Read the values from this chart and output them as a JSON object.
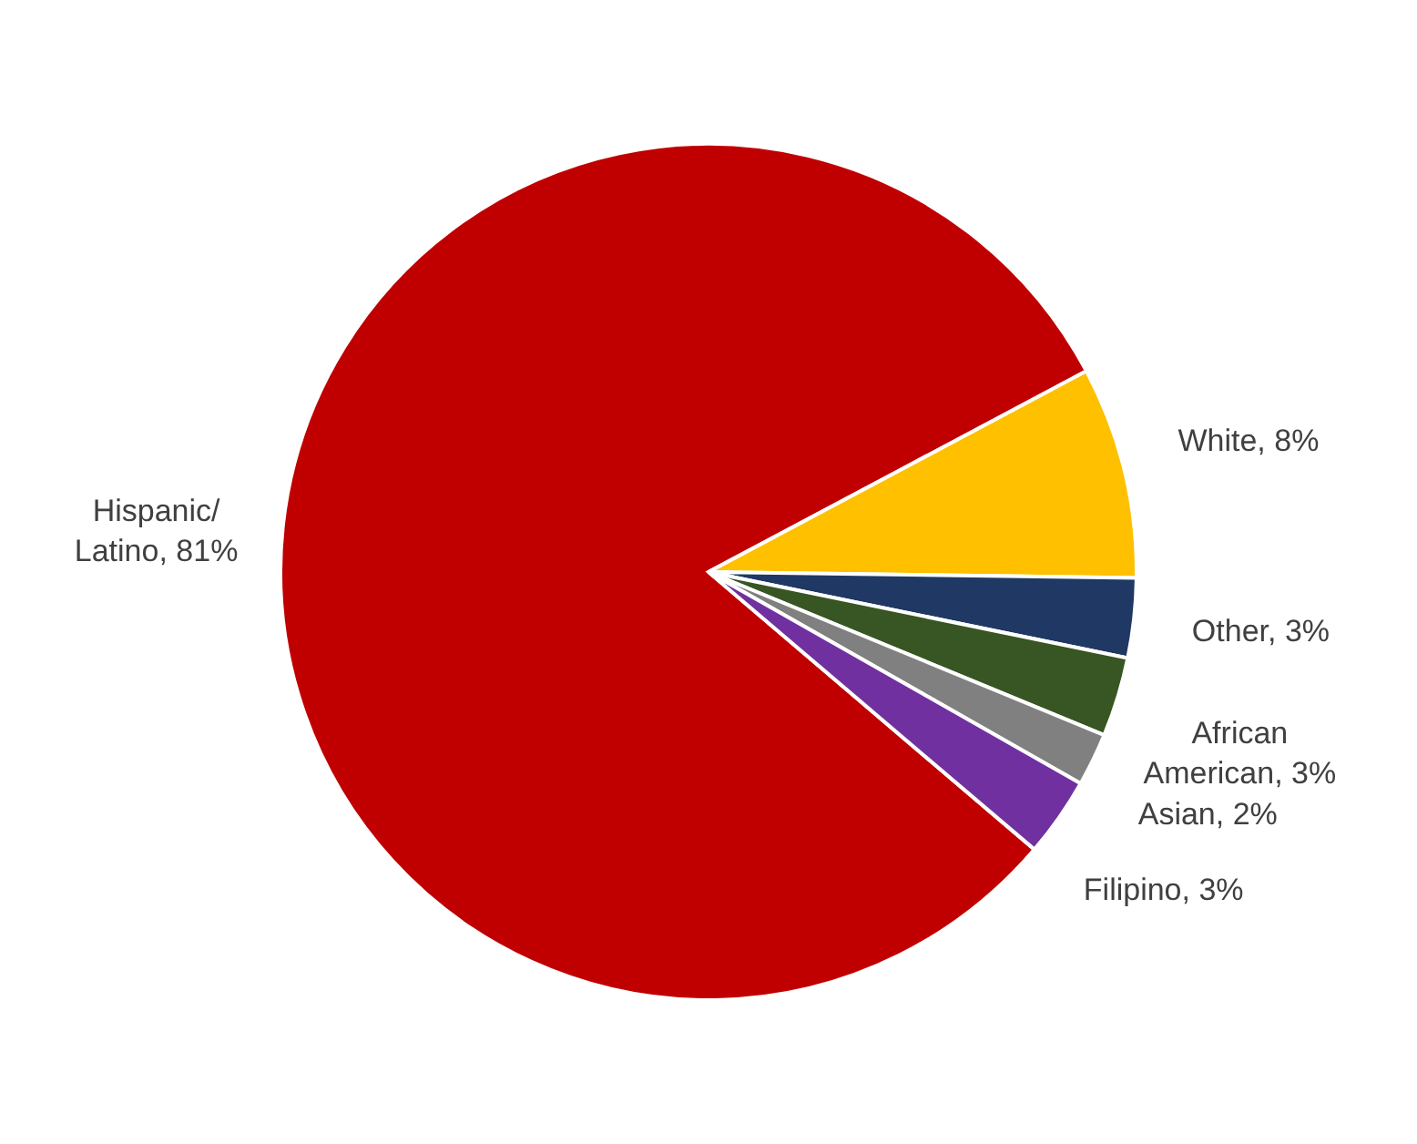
{
  "chart_data": {
    "type": "pie",
    "categories": [
      "Hispanic/ Latino",
      "White",
      "Other",
      "African American",
      "Asian",
      "Filipino"
    ],
    "values": [
      81,
      8,
      3,
      3,
      2,
      3
    ],
    "colors": [
      "#c00000",
      "#ffc000",
      "#1f3864",
      "#375623",
      "#808080",
      "#7030a0"
    ],
    "value_labels": [
      "81%",
      "8%",
      "3%",
      "3%",
      "2%",
      "3%"
    ],
    "legend": false
  }
}
